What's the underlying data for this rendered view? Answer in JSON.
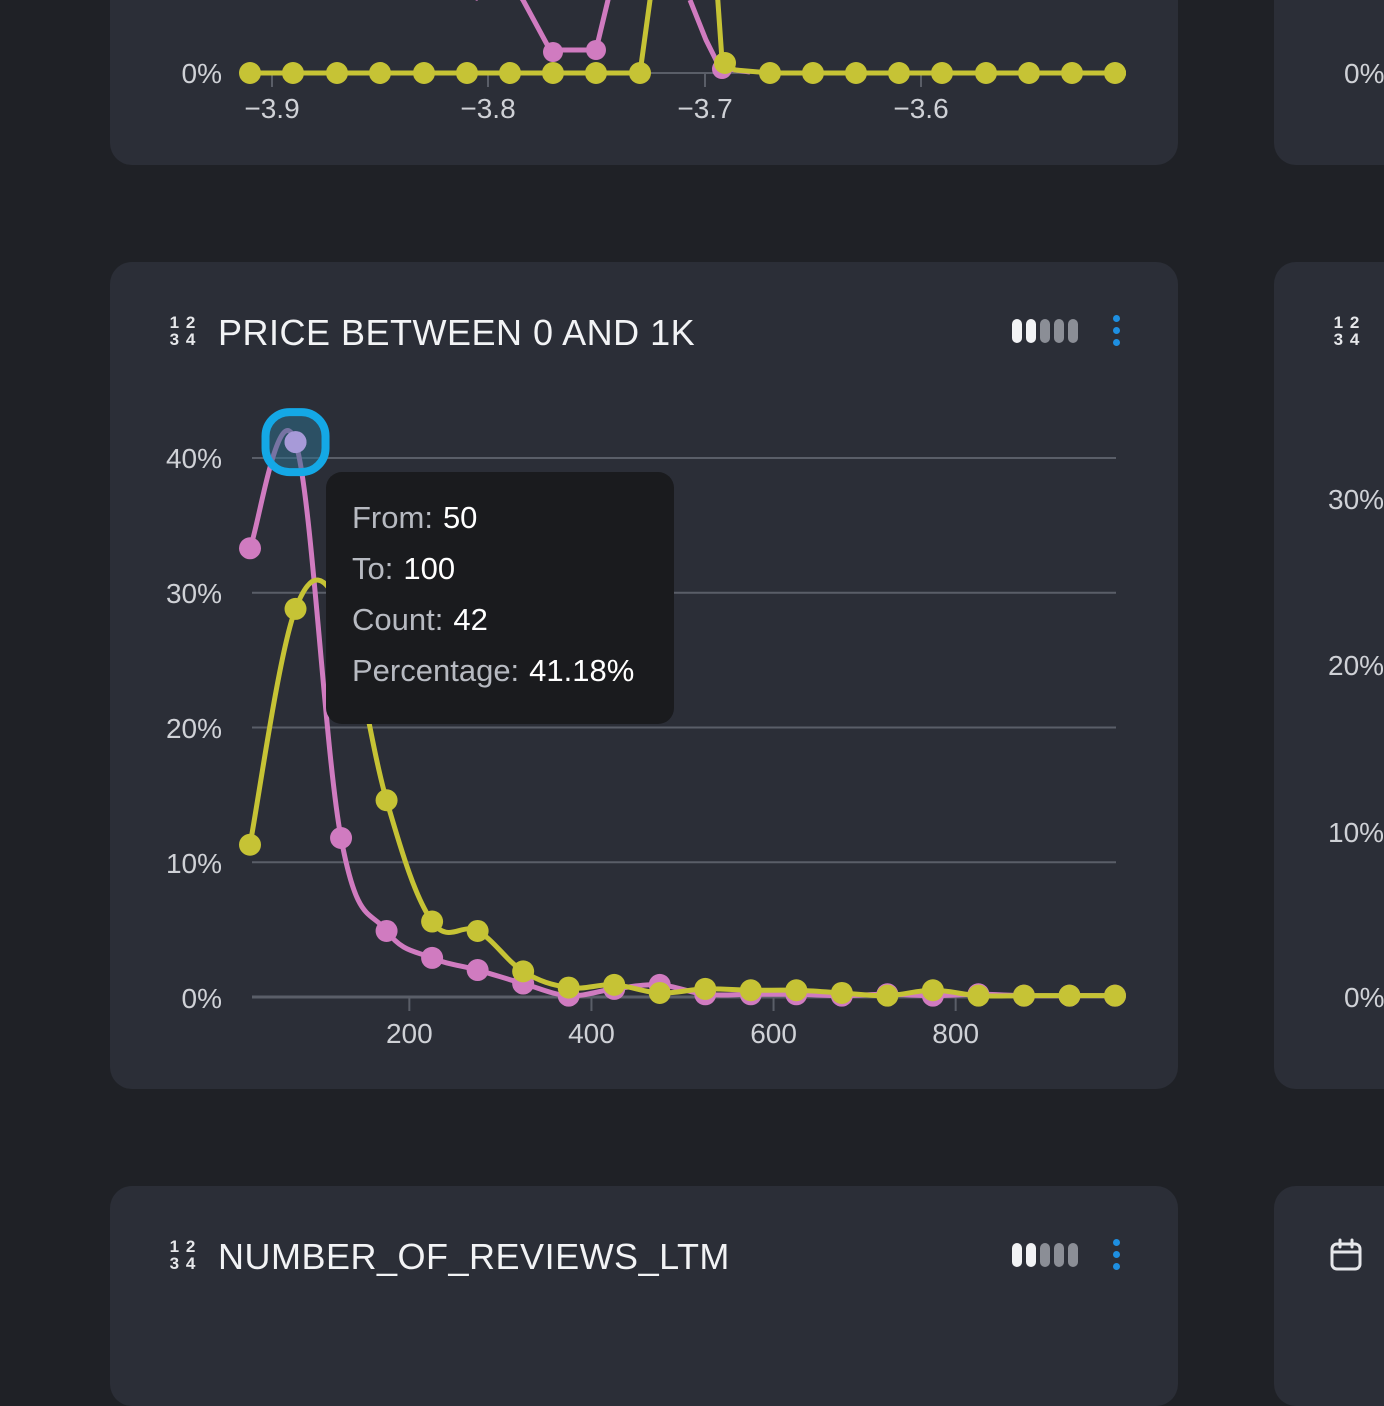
{
  "colors": {
    "pink": "#d07bc0",
    "yellow": "#c6c335",
    "highlight": "#14a8e6",
    "grid": "#5a5e68",
    "axis_text": "#cfd1d6"
  },
  "top_card": {
    "y_tick": "0%",
    "x_ticks": [
      "−3.9",
      "−3.8",
      "−3.7",
      "−3.6"
    ]
  },
  "right_top_card": {
    "y_tick": "0%"
  },
  "main_card": {
    "type_icon": "1 2 3 4",
    "title": "PRICE BETWEEN 0 AND 1K",
    "bars_icon": "distribution-bars-icon",
    "menu_icon": "kebab-menu-icon"
  },
  "right_main_card": {
    "type_icon": "1 2 3 4",
    "y_ticks": [
      "30%",
      "20%",
      "10%",
      "0%"
    ]
  },
  "bottom_card": {
    "type_icon": "1 2 3 4",
    "title": "NUMBER_OF_REVIEWS_LTM",
    "bars_icon": "distribution-bars-icon",
    "menu_icon": "kebab-menu-icon"
  },
  "right_bottom_card": {
    "icon": "calendar-icon"
  },
  "tooltip": {
    "from_label": "From:",
    "from_value": "50",
    "to_label": "To:",
    "to_value": "100",
    "count_label": "Count:",
    "count_value": "42",
    "pct_label": "Percentage:",
    "pct_value": "41.18%"
  },
  "chart_data": {
    "type": "line",
    "title": "PRICE BETWEEN 0 AND 1K",
    "x_ticks": [
      200,
      400,
      600,
      800
    ],
    "y_ticks": [
      "40%",
      "30%",
      "20%",
      "10%",
      "0%"
    ],
    "xlim": [
      25,
      975
    ],
    "ylim": [
      0,
      40
    ],
    "grid": true,
    "x": [
      25,
      75,
      125,
      175,
      225,
      275,
      325,
      375,
      425,
      475,
      525,
      575,
      625,
      675,
      725,
      775,
      825,
      875,
      925,
      975
    ],
    "series": [
      {
        "color": "pink",
        "values": [
          33.3,
          41.18,
          11.8,
          4.9,
          2.9,
          2.0,
          1.0,
          0.1,
          0.6,
          0.9,
          0.2,
          0.2,
          0.2,
          0.1,
          0.2,
          0.1,
          0.2,
          0.1,
          0.1,
          0.1
        ]
      },
      {
        "color": "yellow",
        "values": [
          11.3,
          28.8,
          28.8,
          14.6,
          5.6,
          4.9,
          1.9,
          0.7,
          0.9,
          0.3,
          0.6,
          0.5,
          0.5,
          0.3,
          0.1,
          0.5,
          0.1,
          0.1,
          0.1,
          0.1
        ]
      }
    ],
    "highlight_index": 1
  }
}
